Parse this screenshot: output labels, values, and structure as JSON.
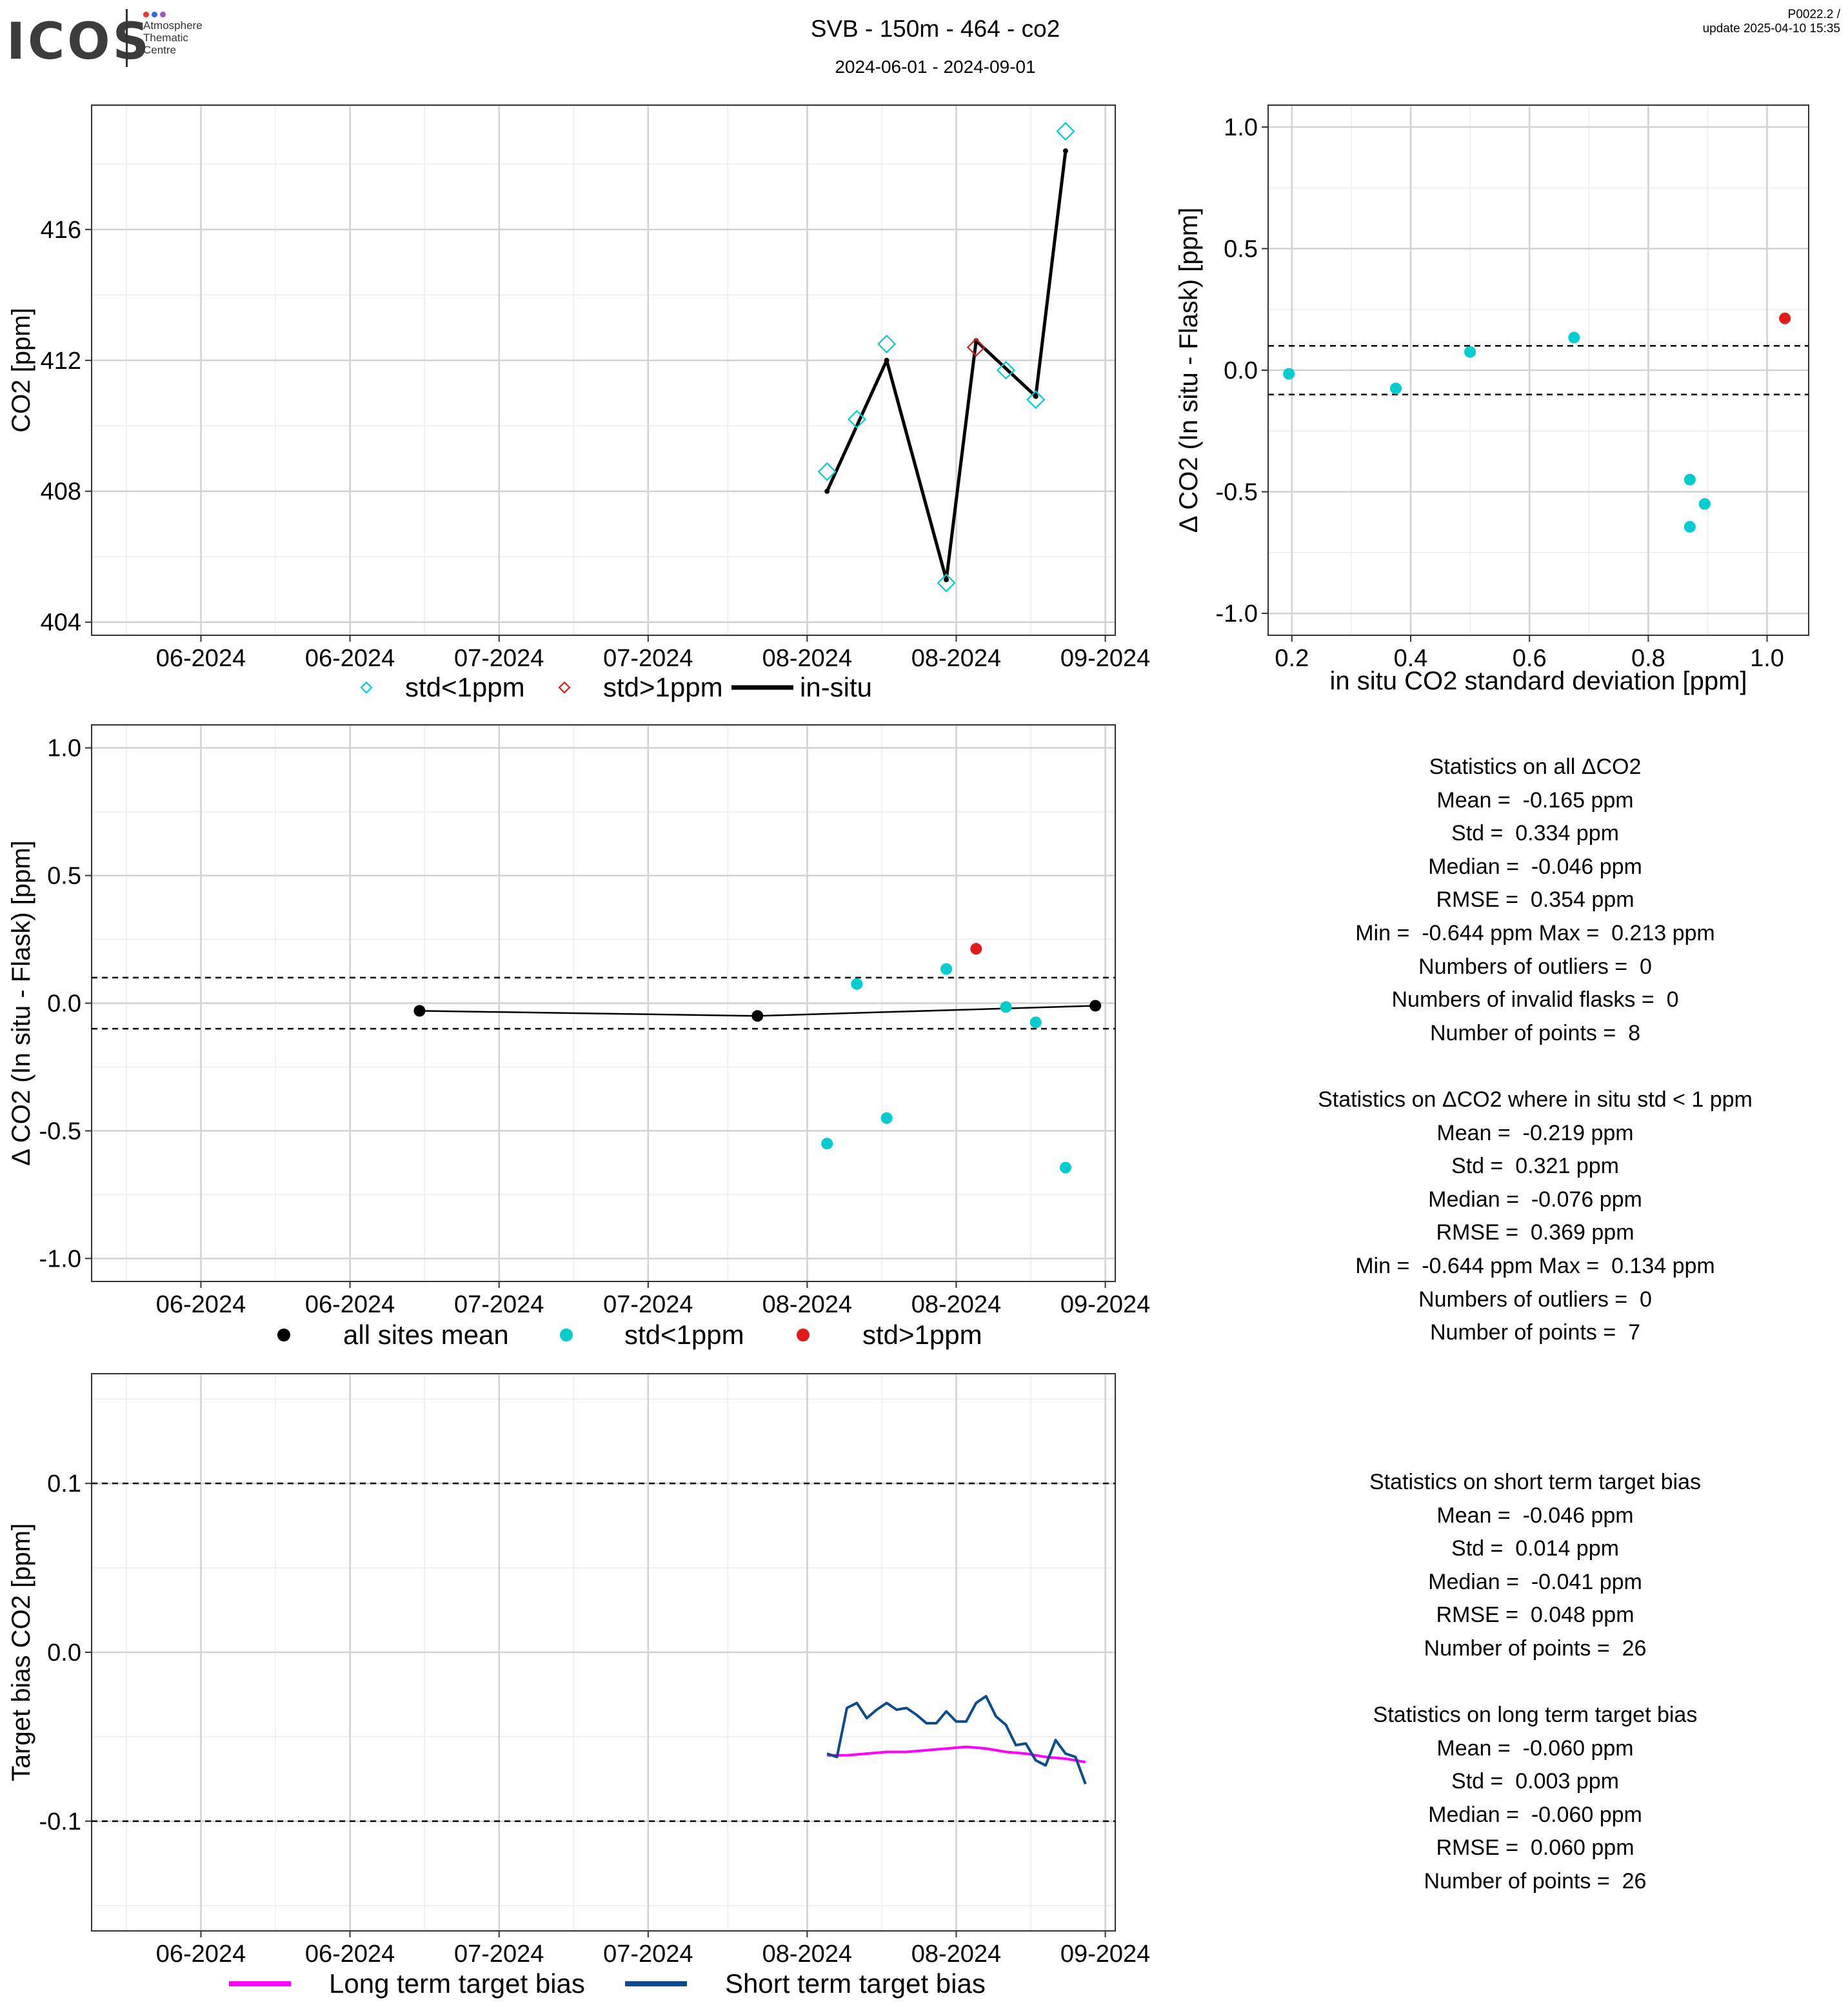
{
  "header": {
    "logo_text": "ICOS",
    "logo_subtitle": [
      "Atmosphere",
      "Thematic",
      "Centre"
    ],
    "logo_dot_colors": [
      "#e8383d",
      "#2f6fd6",
      "#9b59b6"
    ],
    "title": "SVB - 150m - 464 - co2",
    "subtitle": "2024-06-01 - 2024-09-01",
    "version_line1": "P0022.2 /",
    "version_line2": "update  2025-04-10 15:35"
  },
  "colors": {
    "cyan": "#00CDCD",
    "red": "#E31A1C",
    "black": "#000000",
    "magenta": "#FF00FF",
    "navy": "#0B4C8C"
  },
  "chart_data": [
    {
      "id": "co2-timeseries",
      "type": "line",
      "ylabel": "CO2 [ppm]",
      "xlabel": "",
      "x_ticks": [
        "2024-06-01",
        "2024-06-16",
        "2024-07-01",
        "2024-07-16",
        "2024-08-01",
        "2024-08-16",
        "2024-08-31"
      ],
      "x_tick_labels": [
        "06-2024",
        "06-2024",
        "07-2024",
        "07-2024",
        "08-2024",
        "08-2024",
        "09-2024"
      ],
      "xlim": [
        "2024-05-21",
        "2024-09-01"
      ],
      "ylim": [
        403.6,
        419.8
      ],
      "y_ticks": [
        404,
        408,
        412,
        416
      ],
      "series": [
        {
          "name": "std<1ppm",
          "marker": "diamond-open",
          "color": "cyan",
          "x": [
            "2024-08-03",
            "2024-08-06",
            "2024-08-09",
            "2024-08-15",
            "2024-08-21",
            "2024-08-24",
            "2024-08-27"
          ],
          "y": [
            408.6,
            410.2,
            412.5,
            405.2,
            411.7,
            410.8,
            419.0
          ]
        },
        {
          "name": "std>1ppm",
          "marker": "diamond-open",
          "color": "red",
          "x": [
            "2024-08-18"
          ],
          "y": [
            412.4
          ]
        },
        {
          "name": "in-situ",
          "marker": "line",
          "color": "black",
          "x": [
            "2024-08-03",
            "2024-08-09",
            "2024-08-15",
            "2024-08-18",
            "2024-08-24",
            "2024-08-27"
          ],
          "y": [
            408.0,
            412.0,
            405.3,
            412.6,
            410.9,
            418.4
          ]
        }
      ],
      "legend": [
        "std<1ppm",
        "std>1ppm",
        "in-situ"
      ],
      "legend_position": "bottom",
      "hlines": []
    },
    {
      "id": "delta-vs-std",
      "type": "scatter",
      "xlabel": "in situ CO2 standard deviation [ppm]",
      "ylabel": "Δ CO2 (In situ - Flask) [ppm]",
      "xlim": [
        0.16,
        1.07
      ],
      "ylim": [
        -1.09,
        1.09
      ],
      "x_ticks": [
        0.2,
        0.4,
        0.6,
        0.8,
        1.0
      ],
      "x_tick_labels": [
        "0.2",
        "0.4",
        "0.6",
        "0.8",
        "1.0"
      ],
      "y_ticks": [
        -1.0,
        -0.5,
        0.0,
        0.5,
        1.0
      ],
      "y_tick_labels": [
        "-1.0",
        "-0.5",
        "0.0",
        "0.5",
        "1.0"
      ],
      "hlines": [
        0.1,
        -0.1
      ],
      "series": [
        {
          "name": "std<1ppm",
          "color": "cyan",
          "x": [
            0.195,
            0.375,
            0.5,
            0.675,
            0.87,
            0.895,
            0.87
          ],
          "y": [
            -0.015,
            -0.075,
            0.075,
            0.134,
            -0.45,
            -0.55,
            -0.644
          ]
        },
        {
          "name": "std>1ppm",
          "color": "red",
          "x": [
            1.03
          ],
          "y": [
            0.213
          ]
        }
      ]
    },
    {
      "id": "delta-timeseries",
      "type": "scatter",
      "xlabel": "",
      "ylabel": "Δ CO2 (In situ - Flask) [ppm]",
      "x_ticks": [
        "2024-06-01",
        "2024-06-16",
        "2024-07-01",
        "2024-07-16",
        "2024-08-01",
        "2024-08-16",
        "2024-08-31"
      ],
      "x_tick_labels": [
        "06-2024",
        "06-2024",
        "07-2024",
        "07-2024",
        "08-2024",
        "08-2024",
        "09-2024"
      ],
      "xlim": [
        "2024-05-21",
        "2024-09-01"
      ],
      "ylim": [
        -1.09,
        1.09
      ],
      "y_ticks": [
        -1.0,
        -0.5,
        0.0,
        0.5,
        1.0
      ],
      "y_tick_labels": [
        "-1.0",
        "-0.5",
        "0.0",
        "0.5",
        "1.0"
      ],
      "hlines": [
        0.1,
        -0.1
      ],
      "series": [
        {
          "name": "all sites mean",
          "color": "black",
          "line": true,
          "x": [
            "2024-06-23",
            "2024-07-27",
            "2024-08-30"
          ],
          "y": [
            -0.03,
            -0.05,
            -0.01
          ]
        },
        {
          "name": "std<1ppm",
          "color": "cyan",
          "x": [
            "2024-08-03",
            "2024-08-06",
            "2024-08-09",
            "2024-08-15",
            "2024-08-21",
            "2024-08-24",
            "2024-08-27"
          ],
          "y": [
            -0.55,
            0.075,
            -0.45,
            0.134,
            -0.015,
            -0.075,
            -0.644
          ]
        },
        {
          "name": "std>1ppm",
          "color": "red",
          "x": [
            "2024-08-18"
          ],
          "y": [
            0.213
          ]
        }
      ],
      "legend": [
        "all sites mean",
        "std<1ppm",
        "std>1ppm"
      ],
      "legend_position": "bottom"
    },
    {
      "id": "target-bias",
      "type": "line",
      "xlabel": "",
      "ylabel": "Target bias CO2 [ppm]",
      "x_ticks": [
        "2024-06-01",
        "2024-06-16",
        "2024-07-01",
        "2024-07-16",
        "2024-08-01",
        "2024-08-16",
        "2024-08-31"
      ],
      "x_tick_labels": [
        "06-2024",
        "06-2024",
        "07-2024",
        "07-2024",
        "08-2024",
        "08-2024",
        "09-2024"
      ],
      "xlim": [
        "2024-05-21",
        "2024-09-01"
      ],
      "ylim": [
        -0.165,
        0.165
      ],
      "y_ticks": [
        -0.1,
        0.0,
        0.1
      ],
      "y_tick_labels": [
        "-0.1",
        "0.0",
        "0.1"
      ],
      "hlines": [
        0.1,
        -0.1
      ],
      "series": [
        {
          "name": "Long term target bias",
          "color": "magenta",
          "x": [
            "2024-08-03",
            "2024-08-05",
            "2024-08-07",
            "2024-08-09",
            "2024-08-11",
            "2024-08-13",
            "2024-08-15",
            "2024-08-17",
            "2024-08-19",
            "2024-08-21",
            "2024-08-23",
            "2024-08-25",
            "2024-08-27",
            "2024-08-29"
          ],
          "y": [
            -0.061,
            -0.061,
            -0.06,
            -0.059,
            -0.059,
            -0.058,
            -0.057,
            -0.056,
            -0.057,
            -0.059,
            -0.06,
            -0.062,
            -0.063,
            -0.065
          ]
        },
        {
          "name": "Short term target bias",
          "color": "navy",
          "x": [
            "2024-08-03",
            "2024-08-04",
            "2024-08-05",
            "2024-08-06",
            "2024-08-07",
            "2024-08-08",
            "2024-08-09",
            "2024-08-10",
            "2024-08-11",
            "2024-08-12",
            "2024-08-13",
            "2024-08-14",
            "2024-08-15",
            "2024-08-16",
            "2024-08-17",
            "2024-08-18",
            "2024-08-19",
            "2024-08-20",
            "2024-08-21",
            "2024-08-22",
            "2024-08-23",
            "2024-08-24",
            "2024-08-25",
            "2024-08-26",
            "2024-08-27",
            "2024-08-28",
            "2024-08-29"
          ],
          "y": [
            -0.06,
            -0.062,
            -0.033,
            -0.03,
            -0.039,
            -0.034,
            -0.03,
            -0.034,
            -0.033,
            -0.037,
            -0.042,
            -0.042,
            -0.035,
            -0.041,
            -0.041,
            -0.03,
            -0.026,
            -0.038,
            -0.043,
            -0.055,
            -0.054,
            -0.064,
            -0.067,
            -0.052,
            -0.06,
            -0.062,
            -0.078
          ]
        }
      ],
      "legend": [
        "Long term target bias",
        "Short term target bias"
      ],
      "legend_position": "bottom"
    }
  ],
  "stats_all": {
    "title": "Statistics on all ΔCO2",
    "lines": [
      "Mean =  -0.165 ppm",
      "Std =  0.334 ppm",
      "Median =  -0.046 ppm",
      "RMSE =  0.354 ppm",
      "Min =  -0.644 ppm Max =  0.213 ppm",
      "Numbers of outliers =  0",
      "Numbers of invalid flasks =  0",
      "Number of points =  8"
    ]
  },
  "stats_std1": {
    "title": "Statistics on ΔCO2 where in situ std < 1 ppm",
    "lines": [
      "Mean =  -0.219 ppm",
      "Std =  0.321 ppm",
      "Median =  -0.076 ppm",
      "RMSE =  0.369 ppm",
      "Min =  -0.644 ppm Max =  0.134 ppm",
      "Numbers of outliers =  0",
      "Number of points =  7"
    ]
  },
  "stats_short": {
    "title": "Statistics on short term target bias",
    "lines": [
      "Mean =  -0.046 ppm",
      "Std =  0.014 ppm",
      "Median =  -0.041 ppm",
      "RMSE =  0.048 ppm",
      "Number of points =  26"
    ]
  },
  "stats_long": {
    "title": "Statistics on long term target bias",
    "lines": [
      "Mean =  -0.060 ppm",
      "Std =  0.003 ppm",
      "Median =  -0.060 ppm",
      "RMSE =  0.060 ppm",
      "Number of points =  26"
    ]
  }
}
